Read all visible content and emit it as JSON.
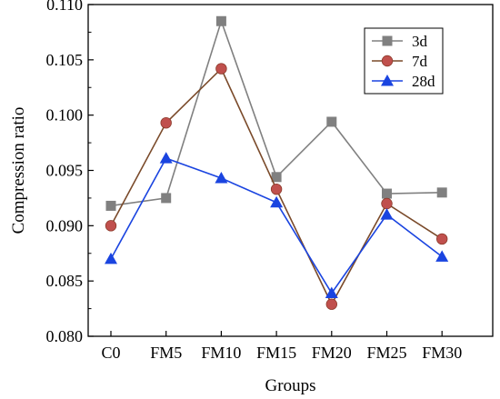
{
  "chart_data": {
    "type": "line",
    "title": "",
    "xlabel": "Groups",
    "ylabel": "Compression ratio",
    "categories": [
      "C0",
      "FM5",
      "FM10",
      "FM15",
      "FM20",
      "FM25",
      "FM30"
    ],
    "ylim": [
      0.08,
      0.11
    ],
    "yticks": [
      "0.080",
      "0.085",
      "0.090",
      "0.095",
      "0.100",
      "0.105",
      "0.110"
    ],
    "grid": false,
    "legend_position": "top-right",
    "series": [
      {
        "name": "3d",
        "color": "#808080",
        "marker": "square",
        "values": [
          0.0918,
          0.0925,
          0.1085,
          0.0944,
          0.0994,
          0.0929,
          0.093
        ]
      },
      {
        "name": "7d",
        "color": "#c0504d",
        "line_color": "#7a4a2a",
        "marker": "circle",
        "values": [
          0.09,
          0.0993,
          0.1042,
          0.0933,
          0.0829,
          0.092,
          0.0888
        ]
      },
      {
        "name": "28d",
        "color": "#1a44e0",
        "marker": "triangle",
        "values": [
          0.087,
          0.0961,
          0.0943,
          0.0921,
          0.0839,
          0.091,
          0.0872
        ]
      }
    ]
  }
}
